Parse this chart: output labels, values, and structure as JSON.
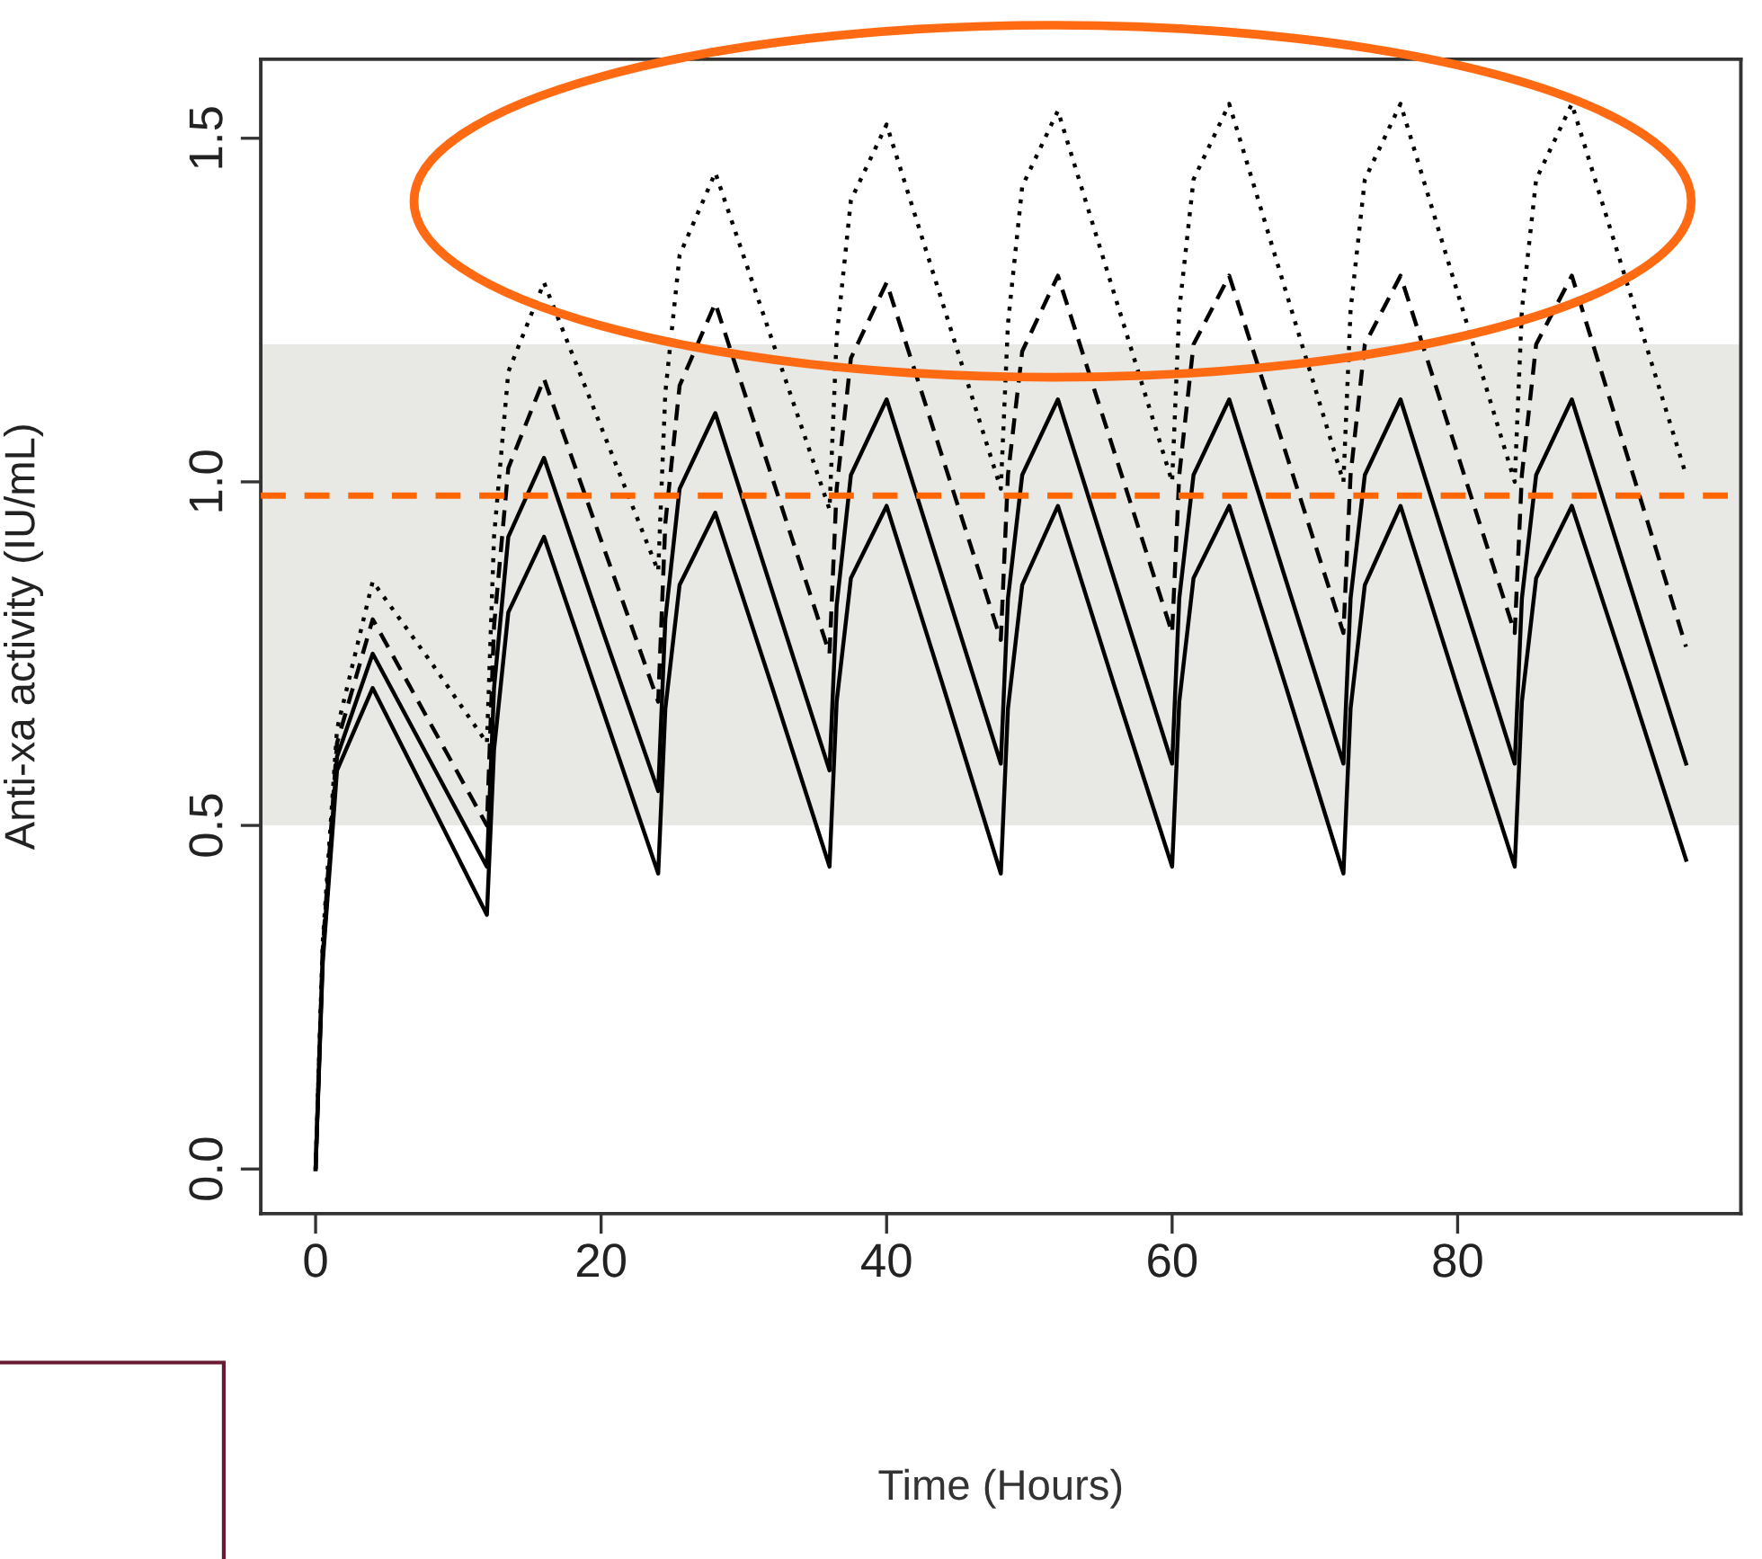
{
  "chart_data": {
    "type": "line",
    "xlabel": "Time (Hours)",
    "ylabel": "Anti-xa activity (IU/mL)",
    "x": [
      0,
      0.5,
      1.5,
      4,
      8,
      12,
      12.5,
      13.5,
      16,
      20,
      24,
      24.5,
      25.5,
      28,
      32,
      36,
      36.5,
      37.5,
      40,
      44,
      48,
      48.5,
      49.5,
      52,
      56,
      60,
      60.5,
      61.5,
      64,
      68,
      72,
      72.5,
      73.5,
      76,
      80,
      84,
      84.5,
      85.5,
      88,
      92,
      96
    ],
    "series": [
      {
        "color": "#000000",
        "line_style": "solid",
        "values": [
          0,
          0.3,
          0.58,
          0.7,
          0.535,
          0.37,
          0.61,
          0.81,
          0.92,
          0.675,
          0.43,
          0.67,
          0.85,
          0.955,
          0.7,
          0.44,
          0.68,
          0.86,
          0.965,
          0.7,
          0.43,
          0.67,
          0.85,
          0.965,
          0.7,
          0.44,
          0.68,
          0.86,
          0.965,
          0.7,
          0.43,
          0.67,
          0.85,
          0.965,
          0.7,
          0.44,
          0.68,
          0.86,
          0.965,
          0.71,
          0.45
        ]
      },
      {
        "color": "#000000",
        "line_style": "solid",
        "values": [
          0,
          0.31,
          0.6,
          0.75,
          0.595,
          0.44,
          0.7,
          0.92,
          1.035,
          0.79,
          0.55,
          0.8,
          0.99,
          1.1,
          0.84,
          0.58,
          0.82,
          1.01,
          1.12,
          0.855,
          0.59,
          0.83,
          1.01,
          1.12,
          0.855,
          0.59,
          0.83,
          1.01,
          1.12,
          0.855,
          0.59,
          0.83,
          1.01,
          1.12,
          0.855,
          0.59,
          0.83,
          1.01,
          1.12,
          0.855,
          0.59
        ]
      },
      {
        "color": "#000000",
        "line_style": "dashed",
        "values": [
          0,
          0.32,
          0.62,
          0.8,
          0.65,
          0.5,
          0.79,
          1.02,
          1.15,
          0.915,
          0.68,
          0.94,
          1.14,
          1.26,
          1.005,
          0.75,
          0.99,
          1.18,
          1.29,
          1.03,
          0.77,
          1.01,
          1.19,
          1.3,
          1.04,
          0.78,
          1.01,
          1.2,
          1.3,
          1.04,
          0.78,
          1.01,
          1.2,
          1.3,
          1.04,
          0.78,
          1.01,
          1.2,
          1.3,
          1.03,
          0.76
        ]
      },
      {
        "color": "#000000",
        "line_style": "dotted",
        "values": [
          0,
          0.33,
          0.64,
          0.855,
          0.74,
          0.62,
          0.92,
          1.16,
          1.29,
          1.08,
          0.87,
          1.13,
          1.33,
          1.45,
          1.205,
          0.96,
          1.21,
          1.41,
          1.52,
          1.255,
          0.99,
          1.23,
          1.43,
          1.54,
          1.27,
          1.0,
          1.25,
          1.44,
          1.55,
          1.275,
          1.0,
          1.25,
          1.44,
          1.55,
          1.275,
          1.0,
          1.25,
          1.44,
          1.55,
          1.28,
          1.01
        ]
      }
    ],
    "xlim": [
      -3.84,
      99.84
    ],
    "xticks": [
      0,
      20,
      40,
      60,
      80
    ],
    "ylim": [
      -0.065,
      1.615
    ],
    "yticks": [
      {
        "value": 0,
        "label": "0.0"
      },
      {
        "value": 0.5,
        "label": "0.5"
      },
      {
        "value": 1,
        "label": "1.0"
      },
      {
        "value": 1.5,
        "label": "1.5"
      }
    ],
    "bands": [
      {
        "axis": "y",
        "from": 0.5,
        "to": 1.2,
        "color": "#e8e8e5"
      }
    ],
    "ref_lines": [
      {
        "axis": "y",
        "value": 0.98,
        "color": "#ff6600",
        "line_style": "dashed"
      }
    ],
    "grid": false,
    "legend": false,
    "marker": "none"
  }
}
